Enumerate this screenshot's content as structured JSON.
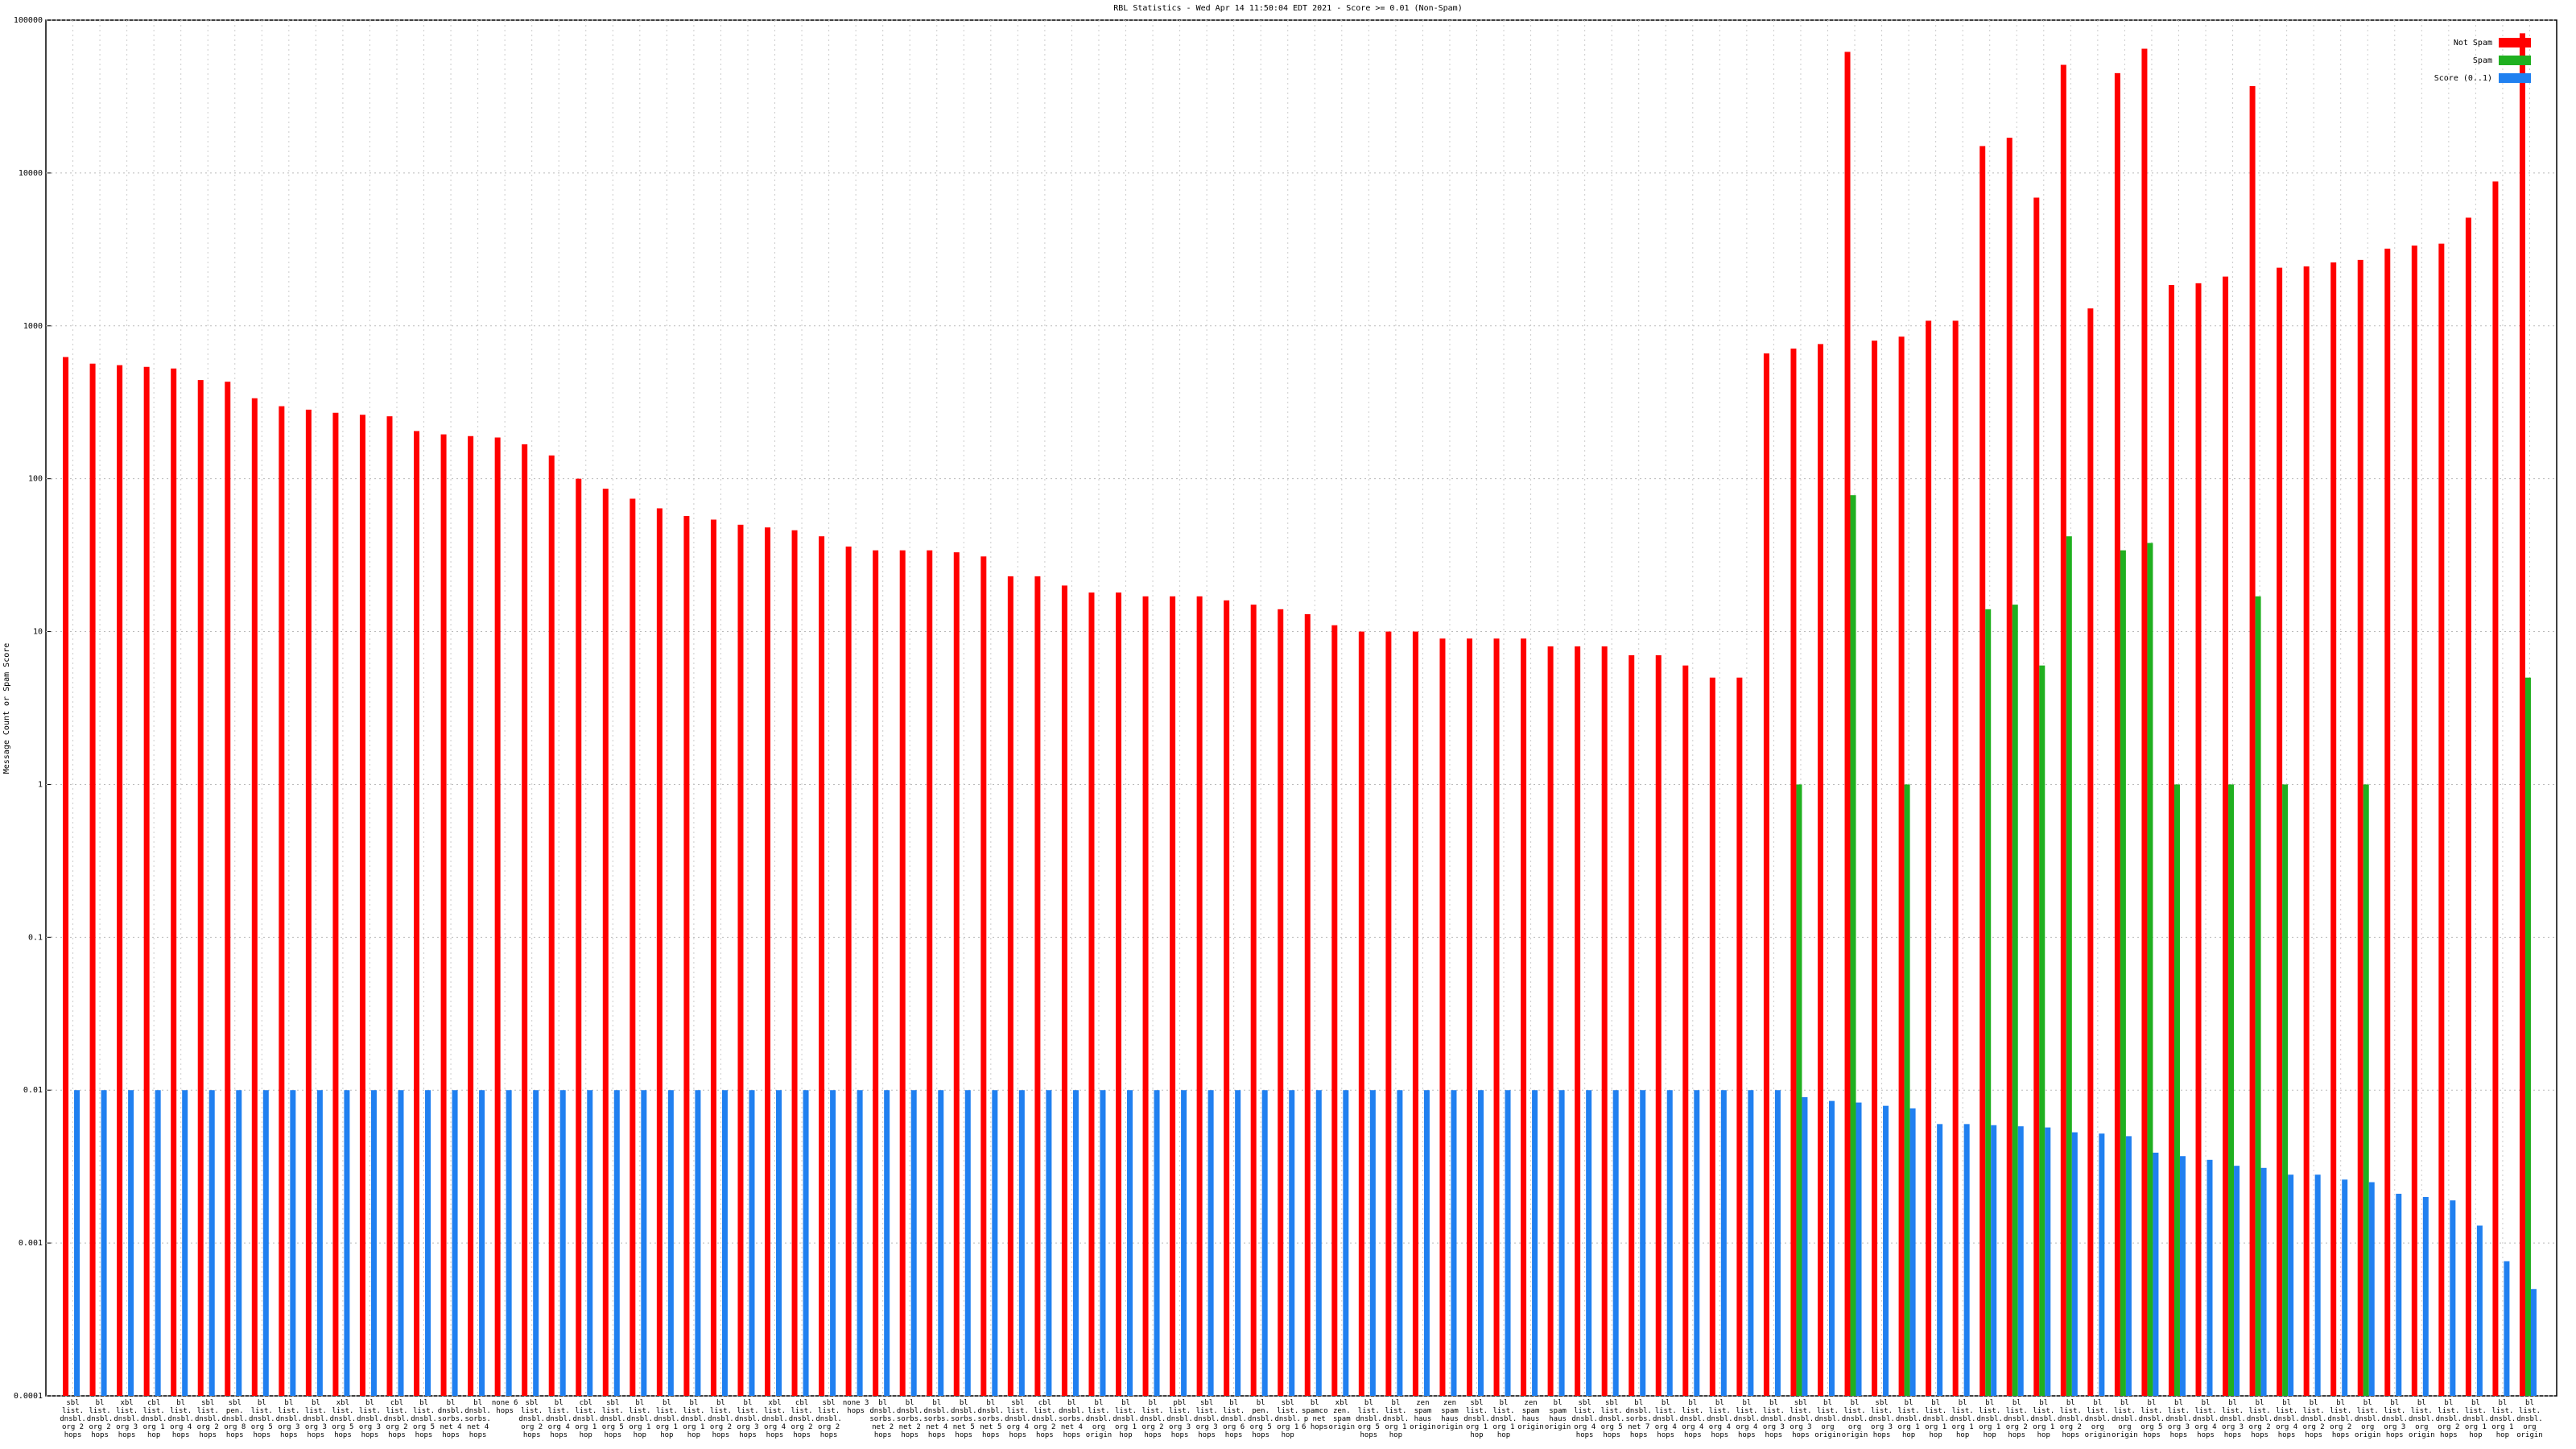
{
  "chart_data": {
    "type": "bar",
    "title": "RBL Statistics - Wed Apr 14 11:50:04 EDT 2021 - Score >= 0.01 (Non-Spam)",
    "y_label": "Message Count or Spam Score",
    "log_scale": true,
    "grid": true,
    "legend": "top-right",
    "ylim": [
      0.0001,
      100000
    ],
    "yticks": [
      0.0001,
      0.001,
      0.01,
      0.1,
      1,
      10,
      100,
      1000,
      10000,
      100000
    ],
    "categories": [
      "sbl list. dnsbl. org 2 hops",
      "bl list. dnsbl. org 2 hops",
      "xbl list. dnsbl. org 3 hops",
      "cbl list. dnsbl. org 1 hop",
      "bl list. dnsbl. org 4 hops",
      "sbl list. dnsbl. org 2 hops",
      "sbl pen. dnsbl. org 8 hops",
      "bl list. dnsbl. org 5 hops",
      "bl list. dnsbl. org 3 hops",
      "bl list. dnsbl. org 3 hops",
      "xbl list. dnsbl. org 5 hops",
      "bl list. dnsbl. org 3 hops",
      "cbl list. dnsbl. org 2 hops",
      "bl list. dnsbl. org 5 hops",
      "bl dnsbl. sorbs. net 4 hops",
      "bl dnsbl. sorbs. net 4 hops",
      "none 6 hops",
      "sbl list. dnsbl. org 2 hops",
      "bl list. dnsbl. org 4 hops",
      "cbl list. dnsbl. org 1 hop",
      "sbl list. dnsbl. org 5 hops",
      "bl list. dnsbl. org 1 hop",
      "bl list. dnsbl. org 1 hop",
      "bl list. dnsbl. org 1 hop",
      "bl list. dnsbl. org 2 hops",
      "bl list. dnsbl. org 3 hops",
      "xbl list. dnsbl. org 4 hops",
      "cbl list. dnsbl. org 2 hops",
      "sbl list. dnsbl. org 2 hops",
      "none 3 hops",
      "bl dnsbl. sorbs. net 2 hops",
      "bl dnsbl. sorbs. net 2 hops",
      "bl dnsbl. sorbs. net 4 hops",
      "bl dnsbl. sorbs. net 5 hops",
      "bl dnsbl. sorbs. net 5 hops",
      "sbl list. dnsbl. org 4 hops",
      "cbl list. dnsbl. org 2 hops",
      "bl dnsbl. sorbs. net 4 hops",
      "bl list. dnsbl. org origin",
      "bl list. dnsbl. org 1 hop",
      "bl list. dnsbl. org 2 hops",
      "pbl list. dnsbl. org 3 hops",
      "sbl list. dnsbl. org 3 hops",
      "bl list. dnsbl. org 6 hops",
      "bl pen. dnsbl. org 5 hops",
      "sbl list. dnsbl. org 1 hop",
      "bl spamcop net 6 hops",
      "xbl zen. spam origin",
      "bl list. dnsbl. org 5 hops",
      "bl list. dnsbl. org 1 hop",
      "zen spam haus origin",
      "zen spam haus origin",
      "sbl list. dnsbl. org 1 hop",
      "bl list. dnsbl. org 1 hop",
      "zen spam haus origin",
      "bl spam haus origin",
      "sbl list. dnsbl. org 4 hops",
      "sbl list. dnsbl. org 5 hops",
      "bl dnsbl. sorbs. net 7 hops",
      "bl list. dnsbl. org 4 hops",
      "bl list. dnsbl. org 4 hops",
      "bl list. dnsbl. org 4 hops",
      "bl list. dnsbl. org 4 hops",
      "bl list. dnsbl. org 3 hops",
      "sbl list. dnsbl. org 3 hops",
      "bl list. dnsbl. org origin",
      "bl list. dnsbl. org origin",
      "sbl list. dnsbl. org 3 hops",
      "bl list. dnsbl. org 1 hop",
      "bl list. dnsbl. org 1 hop",
      "bl list. dnsbl. org 1 hop",
      "bl list. dnsbl. org 1 hop",
      "bl list. dnsbl. org 2 hops",
      "bl list. dnsbl. org 1 hop",
      "bl list. dnsbl. org 2 hops",
      "bl list. dnsbl. org origin",
      "bl list. dnsbl. org origin",
      "bl list. dnsbl. org 5 hops",
      "bl list. dnsbl. org 3 hops",
      "bl list. dnsbl. org 4 hops",
      "bl list. dnsbl. org 3 hops",
      "bl list. dnsbl. org 2 hops",
      "bl list. dnsbl. org 4 hops",
      "bl list. dnsbl. org 2 hops",
      "bl list. dnsbl. org 2 hops",
      "bl list. dnsbl. org origin",
      "bl list. dnsbl. org 3 hops",
      "bl list. dnsbl. org origin",
      "bl list. dnsbl. org 2 hops",
      "bl list. dnsbl. org 1 hop",
      "bl list. dnsbl. org 1 hop",
      "bl list. dnsbl. org origin"
    ],
    "series": [
      {
        "name": "Not Spam",
        "color": "#ff0000",
        "values": [
          625,
          566,
          553,
          539,
          526,
          442,
          431,
          336,
          298,
          283,
          270,
          262,
          256,
          205,
          195,
          190,
          186,
          168,
          142,
          100,
          86,
          74,
          64,
          57,
          54,
          50,
          48,
          46,
          42,
          36,
          34,
          34,
          34,
          33,
          31,
          23,
          23,
          20,
          18,
          18,
          17,
          17,
          17,
          16,
          15,
          14,
          13,
          11,
          10,
          10,
          10,
          9,
          9,
          9,
          9,
          8,
          8,
          8,
          7,
          7,
          6,
          5,
          5,
          660,
          710,
          760,
          62000,
          800,
          850,
          1080,
          1080,
          15000,
          17000,
          6900,
          51000,
          1300,
          45000,
          65000,
          1850,
          1900,
          2100,
          37000,
          2400,
          2450,
          2600,
          2700,
          3200,
          3350,
          3450,
          5100,
          8800,
          82000
        ]
      },
      {
        "name": "Spam",
        "color": "#20b020",
        "values": [
          null,
          null,
          null,
          null,
          null,
          null,
          null,
          null,
          null,
          null,
          null,
          null,
          null,
          null,
          null,
          null,
          null,
          null,
          null,
          null,
          null,
          null,
          null,
          null,
          null,
          null,
          null,
          null,
          null,
          null,
          null,
          null,
          null,
          null,
          null,
          null,
          null,
          null,
          null,
          null,
          null,
          null,
          null,
          null,
          null,
          null,
          null,
          null,
          null,
          null,
          null,
          null,
          null,
          null,
          null,
          null,
          null,
          null,
          null,
          null,
          null,
          null,
          null,
          null,
          1,
          null,
          78,
          null,
          1,
          null,
          null,
          14,
          15,
          6,
          42,
          null,
          34,
          38,
          1,
          null,
          1,
          17,
          1,
          null,
          null,
          1,
          null,
          null,
          null,
          null,
          null,
          5
        ]
      },
      {
        "name": "Score (0..1)",
        "color": "#2080f0",
        "values": [
          0.01,
          0.01,
          0.01,
          0.01,
          0.01,
          0.01,
          0.01,
          0.01,
          0.01,
          0.01,
          0.01,
          0.01,
          0.01,
          0.01,
          0.01,
          0.01,
          0.01,
          0.01,
          0.01,
          0.01,
          0.01,
          0.01,
          0.01,
          0.01,
          0.01,
          0.01,
          0.01,
          0.01,
          0.01,
          0.01,
          0.01,
          0.01,
          0.01,
          0.01,
          0.01,
          0.01,
          0.01,
          0.01,
          0.01,
          0.01,
          0.01,
          0.01,
          0.01,
          0.01,
          0.01,
          0.01,
          0.01,
          0.01,
          0.01,
          0.01,
          0.01,
          0.01,
          0.01,
          0.01,
          0.01,
          0.01,
          0.01,
          0.01,
          0.01,
          0.01,
          0.01,
          0.01,
          0.01,
          0.01,
          0.009,
          0.0085,
          0.0083,
          0.0079,
          0.0076,
          0.006,
          0.006,
          0.0059,
          0.0058,
          0.0057,
          0.0053,
          0.0052,
          0.005,
          0.0039,
          0.0037,
          0.0035,
          0.0032,
          0.0031,
          0.0028,
          0.0028,
          0.0026,
          0.0025,
          0.0021,
          0.002,
          0.0019,
          0.0013,
          0.00076,
          0.0005
        ]
      }
    ]
  }
}
